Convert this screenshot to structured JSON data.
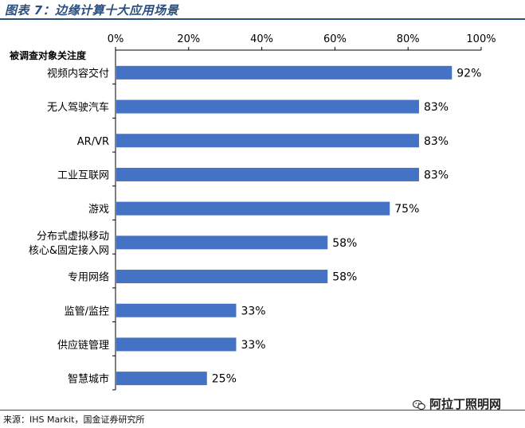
{
  "figure_title": "图表 7：边缘计算十大应用场景",
  "source": "来源：IHS Markit，国金证券研究所",
  "watermark": "阿拉丁照明网",
  "watermark_icon": "wechat-icon",
  "colors": {
    "bar": "#4472c4",
    "title": "#2a4f7f",
    "axis": "#000000"
  },
  "chart_data": {
    "type": "bar",
    "orientation": "horizontal",
    "title": "",
    "xlabel": "",
    "ylabel": "被调查对象关注度",
    "xlim": [
      0,
      100
    ],
    "x_ticks": [
      "0%",
      "20%",
      "40%",
      "60%",
      "80%",
      "100%"
    ],
    "x_axis_position": "top",
    "grid": false,
    "legend": "none",
    "categories": [
      "视频内容交付",
      "无人驾驶汽车",
      "AR/VR",
      "工业互联网",
      "游戏",
      "分布式虚拟移动核心&固定接入网",
      "专用网络",
      "监管/监控",
      "供应链管理",
      "智慧城市"
    ],
    "category_lines": [
      [
        "视频内容交付"
      ],
      [
        "无人驾驶汽车"
      ],
      [
        "AR/VR"
      ],
      [
        "工业互联网"
      ],
      [
        "游戏"
      ],
      [
        "分布式虚拟移动",
        "核心&固定接入网"
      ],
      [
        "专用网络"
      ],
      [
        "监管/监控"
      ],
      [
        "供应链管理"
      ],
      [
        "智慧城市"
      ]
    ],
    "values": [
      92,
      83,
      83,
      83,
      75,
      58,
      58,
      33,
      33,
      25
    ],
    "value_labels": [
      "92%",
      "83%",
      "83%",
      "83%",
      "75%",
      "58%",
      "58%",
      "33%",
      "33%",
      "25%"
    ]
  }
}
